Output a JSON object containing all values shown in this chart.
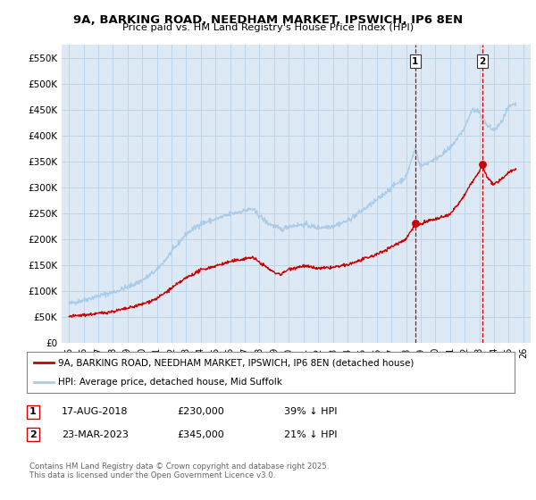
{
  "title": "9A, BARKING ROAD, NEEDHAM MARKET, IPSWICH, IP6 8EN",
  "subtitle": "Price paid vs. HM Land Registry's House Price Index (HPI)",
  "ylim": [
    0,
    575000
  ],
  "yticks": [
    0,
    50000,
    100000,
    150000,
    200000,
    250000,
    300000,
    350000,
    400000,
    450000,
    500000,
    550000
  ],
  "ytick_labels": [
    "£0",
    "£50K",
    "£100K",
    "£150K",
    "£200K",
    "£250K",
    "£300K",
    "£350K",
    "£400K",
    "£450K",
    "£500K",
    "£550K"
  ],
  "xlim_start": 1994.5,
  "xlim_end": 2026.5,
  "xticks": [
    1995,
    1996,
    1997,
    1998,
    1999,
    2000,
    2001,
    2002,
    2003,
    2004,
    2005,
    2006,
    2007,
    2008,
    2009,
    2010,
    2011,
    2012,
    2013,
    2014,
    2015,
    2016,
    2017,
    2018,
    2019,
    2020,
    2021,
    2022,
    2023,
    2024,
    2025,
    2026
  ],
  "hpi_color": "#aacce8",
  "price_color": "#cc0000",
  "grid_color": "#c0d4e8",
  "bg_color": "#ddeaf5",
  "transaction1_year": 2018.625,
  "transaction1_price": 230000,
  "transaction2_year": 2023.22,
  "transaction2_price": 345000,
  "legend1": "9A, BARKING ROAD, NEEDHAM MARKET, IPSWICH, IP6 8EN (detached house)",
  "legend2": "HPI: Average price, detached house, Mid Suffolk",
  "footnote": "Contains HM Land Registry data © Crown copyright and database right 2025.\nThis data is licensed under the Open Government Licence v3.0.",
  "t1_date": "17-AUG-2018",
  "t1_price_str": "£230,000",
  "t1_pct": "39% ↓ HPI",
  "t2_date": "23-MAR-2023",
  "t2_price_str": "£345,000",
  "t2_pct": "21% ↓ HPI"
}
